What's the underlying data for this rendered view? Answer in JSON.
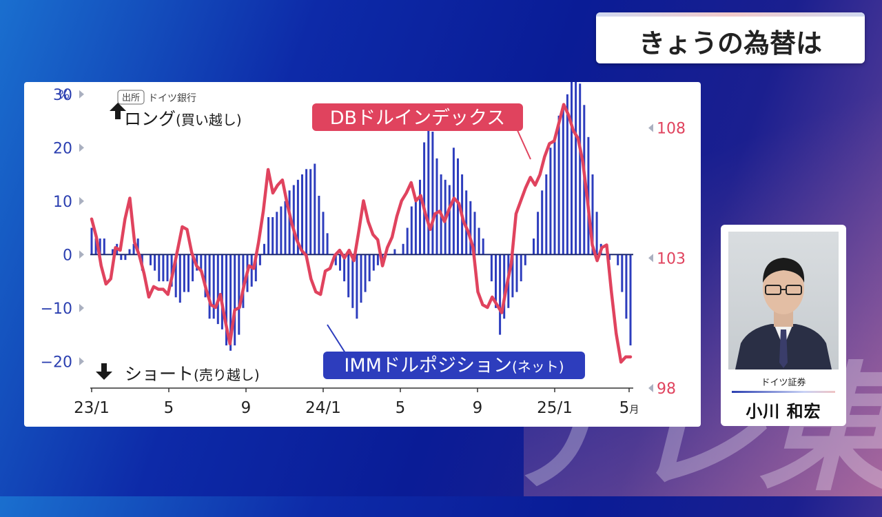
{
  "header": {
    "title": "きょうの為替は"
  },
  "watermark": {
    "text": "テレ東"
  },
  "person": {
    "org": "ドイツ証券",
    "name": "小川 和宏"
  },
  "colors": {
    "bar": "#2d3dbd",
    "line": "#e0435e",
    "left_axis": "#2b3fb0",
    "right_axis": "#e0435e"
  },
  "chart_data": {
    "type": "bar",
    "source_tag": "出所",
    "source": "ドイツ銀行",
    "left_unit": "%",
    "left_ylim": [
      -25,
      31
    ],
    "left_ticks": [
      30,
      20,
      10,
      0,
      -10,
      -20
    ],
    "right_ylim": [
      98,
      109.5
    ],
    "right_ticks": [
      108,
      103,
      98
    ],
    "xtick_labels": [
      "23/1",
      "5",
      "9",
      "24/1",
      "5",
      "9",
      "25/1",
      "5"
    ],
    "xtick_suffix": "月",
    "long_label": "ロング",
    "long_sub": "(買い越し)",
    "short_label": "ショート",
    "short_sub": "(売り越し)",
    "series": [
      {
        "name": "IMMドルポジション",
        "name_suffix": "(ネット)",
        "kind": "bar",
        "axis": "left",
        "values": [
          5,
          3,
          3,
          3,
          0,
          1,
          2,
          -1,
          -1,
          1,
          2,
          3,
          -3,
          0,
          -2,
          -3,
          -5,
          -5,
          -5,
          -6,
          -8,
          -9,
          -7,
          -7,
          -5,
          -3,
          -3,
          -8,
          -12,
          -12,
          -13,
          -14,
          -17,
          -18,
          -17,
          -15,
          -10,
          -7,
          -6,
          -5,
          -2,
          2,
          7,
          7,
          8,
          9,
          10,
          12,
          13,
          14,
          15,
          16,
          16,
          17,
          11,
          8,
          4,
          0,
          -2,
          -3,
          -5,
          -8,
          -10,
          -12,
          -9,
          -7,
          -5,
          -3,
          -2,
          -1,
          0,
          0,
          1,
          0,
          2,
          5,
          9,
          10,
          14,
          21,
          24,
          23,
          18,
          15,
          14,
          13,
          20,
          18,
          15,
          12,
          10,
          8,
          5,
          3,
          0,
          -5,
          -10,
          -15,
          -12,
          -10,
          -8,
          -7,
          -5,
          -2,
          0,
          3,
          8,
          12,
          15,
          20,
          22,
          26,
          28,
          30,
          33,
          34,
          32,
          28,
          22,
          15,
          8,
          2,
          0,
          -1,
          0,
          -2,
          -7,
          -12,
          -17
        ]
      },
      {
        "name": "DBドルインデックス",
        "kind": "line",
        "axis": "right",
        "values": [
          104.5,
          103.8,
          102.7,
          102.0,
          102.2,
          103.4,
          103.3,
          104.5,
          105.3,
          103.6,
          103.1,
          102.4,
          101.5,
          101.9,
          101.8,
          101.8,
          101.6,
          102.4,
          103.3,
          104.2,
          104.1,
          103.2,
          102.7,
          102.5,
          101.8,
          101.2,
          101.1,
          101.6,
          100.6,
          99.7,
          101.0,
          101.1,
          102.0,
          102.7,
          102.6,
          103.6,
          104.8,
          106.4,
          105.5,
          105.8,
          106.0,
          105.1,
          104.3,
          103.7,
          103.3,
          103.1,
          102.2,
          101.7,
          101.6,
          102.5,
          102.6,
          103.1,
          103.3,
          103.0,
          103.3,
          102.9,
          104.0,
          105.2,
          104.4,
          103.9,
          103.7,
          102.7,
          103.4,
          103.8,
          104.6,
          105.2,
          105.5,
          105.9,
          105.2,
          105.4,
          104.7,
          104.1,
          104.7,
          104.8,
          104.4,
          104.9,
          105.3,
          105.1,
          104.4,
          104.0,
          103.4,
          101.7,
          101.2,
          101.1,
          101.5,
          101.2,
          100.9,
          101.9,
          102.8,
          104.7,
          105.2,
          105.7,
          106.1,
          105.8,
          106.2,
          106.9,
          107.4,
          107.5,
          108.2,
          108.9,
          108.5,
          107.9,
          107.6,
          106.7,
          105.2,
          103.5,
          102.9,
          103.4,
          103.5,
          101.7,
          100.1,
          99.0,
          99.2,
          99.2
        ]
      }
    ]
  }
}
